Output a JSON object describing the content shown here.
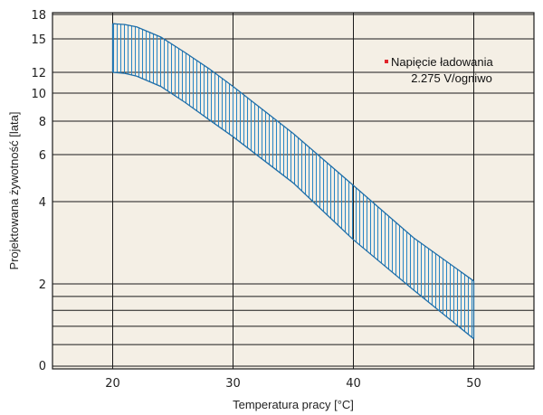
{
  "chart_data": {
    "type": "area",
    "xlabel": "Temperatura pracy [°C]",
    "ylabel": "Projektowana żywotność [lata]",
    "xlim": [
      15,
      55
    ],
    "x_ticks": [
      20,
      30,
      40,
      50
    ],
    "y_scale": "log",
    "y_tick_labels": [
      "0",
      "2",
      "4",
      "6",
      "8",
      "10",
      "12",
      "15",
      "18"
    ],
    "grid": true,
    "band": {
      "x": [
        20,
        21,
        22,
        24,
        26,
        28,
        30,
        35,
        40,
        45,
        50
      ],
      "y_upper": [
        16.8,
        16.7,
        16.4,
        15.2,
        13.7,
        12.3,
        10.6,
        7.2,
        4.6,
        2.95,
        2.05
      ],
      "y_lower": [
        12.0,
        11.9,
        11.6,
        10.6,
        9.3,
        8.1,
        7.0,
        4.7,
        2.9,
        1.9,
        1.26
      ]
    },
    "annotation": {
      "line1": "Napięcie ładowania",
      "line2": "2.275 V/ogniwo",
      "marker_color": "#e0242a"
    },
    "colors": {
      "background": "#f4efe5",
      "band_stroke": "#1f6ea8",
      "hatch": "#2a86c4",
      "grid": "#1a1a1a"
    }
  }
}
